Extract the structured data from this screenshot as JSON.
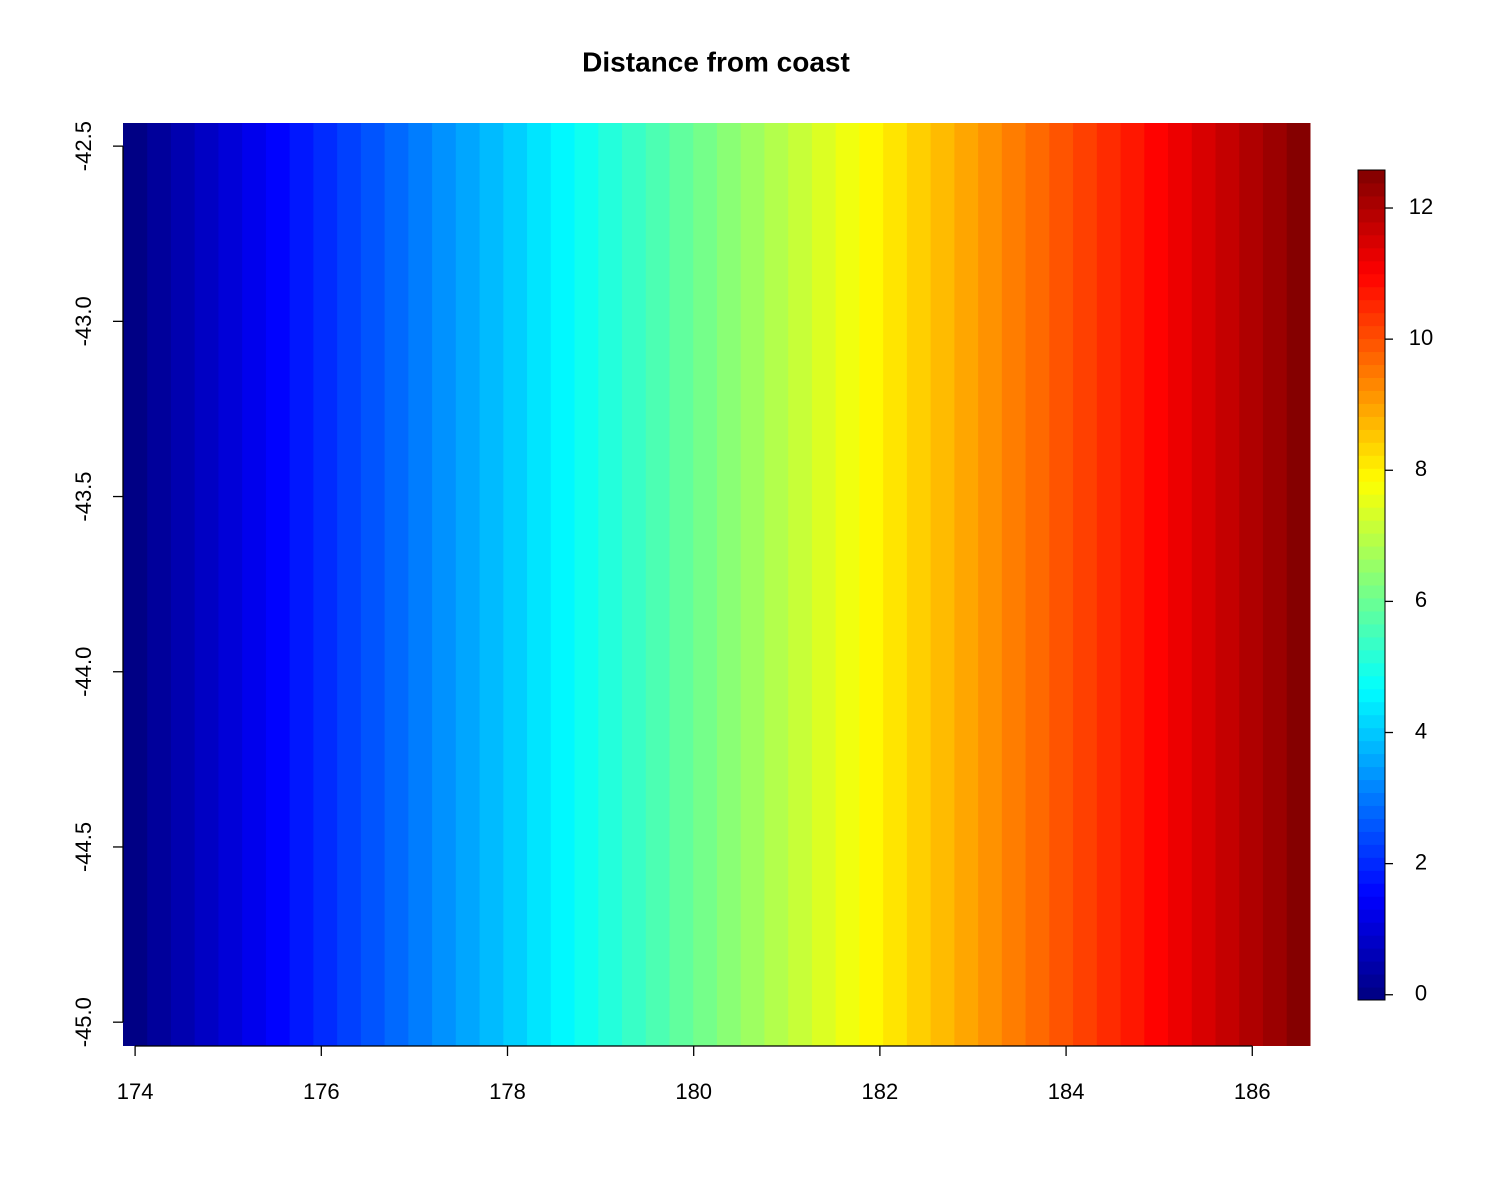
{
  "chart_data": {
    "type": "raster",
    "title": "Distance from coast",
    "x": [
      174,
      174.26,
      174.51,
      174.77,
      175.02,
      175.28,
      175.53,
      175.79,
      176.04,
      176.3,
      176.55,
      176.81,
      177.06,
      177.32,
      177.57,
      177.83,
      178.08,
      178.34,
      178.59,
      178.85,
      179.1,
      179.36,
      179.61,
      179.87,
      180.12,
      180.38,
      180.63,
      180.89,
      181.14,
      181.4,
      181.65,
      181.91,
      182.16,
      182.42,
      182.67,
      182.93,
      183.18,
      183.44,
      183.69,
      183.95,
      184.2,
      184.46,
      184.71,
      184.97,
      185.22,
      185.48,
      185.73,
      185.99,
      186.24,
      186.5
    ],
    "values": [
      0,
      0.26,
      0.51,
      0.77,
      1.02,
      1.28,
      1.53,
      1.79,
      2.04,
      2.3,
      2.55,
      2.81,
      3.06,
      3.32,
      3.57,
      3.83,
      4.08,
      4.34,
      4.59,
      4.85,
      5.1,
      5.36,
      5.61,
      5.87,
      6.12,
      6.38,
      6.63,
      6.89,
      7.14,
      7.4,
      7.65,
      7.91,
      8.16,
      8.42,
      8.67,
      8.93,
      9.18,
      9.44,
      9.69,
      9.95,
      10.2,
      10.46,
      10.71,
      10.97,
      11.22,
      11.48,
      11.73,
      11.99,
      12.24,
      12.5
    ],
    "xlim": [
      173.87,
      186.62
    ],
    "ylim": [
      -45.068,
      -42.434
    ],
    "xticks": [
      174,
      176,
      178,
      180,
      182,
      184,
      186
    ],
    "yticks": [
      -42.5,
      {
        "value": -43,
        "label": "-43.0"
      },
      -43.5,
      {
        "value": -44,
        "label": "-44.0"
      },
      -44.5,
      {
        "value": -45,
        "label": "-45.0"
      }
    ],
    "zlim": [
      -0.08,
      12.58
    ],
    "zticks": [
      0,
      2,
      4,
      6,
      8,
      10,
      12
    ],
    "colors": [
      "#00007f",
      "#0000ff",
      "#007fff",
      "#00ffff",
      "#7fff7f",
      "#ffff00",
      "#ff7f00",
      "#ff0000",
      "#7f0000"
    ]
  }
}
